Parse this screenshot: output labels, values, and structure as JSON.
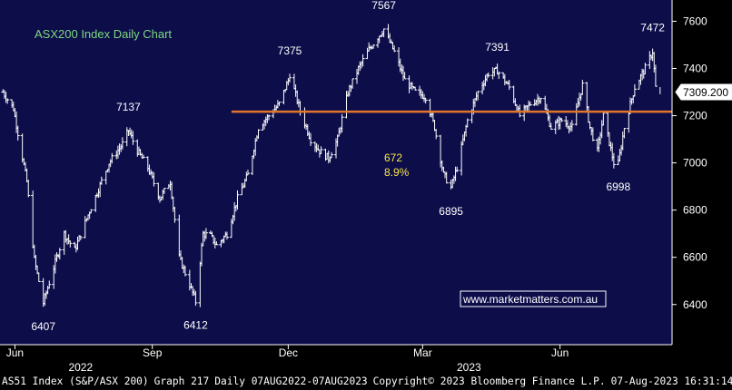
{
  "chart_data": {
    "type": "bar",
    "subtype": "ohlc",
    "title": "ASX200 Index Daily Chart",
    "watermark": "www.marketmatters.com.au",
    "ylim": [
      6230,
      7690
    ],
    "y_ticks": [
      6400,
      6600,
      6800,
      7000,
      7200,
      7400,
      7600
    ],
    "x_range": [
      "2022-05-22",
      "2023-08-15"
    ],
    "x_ticks": [
      {
        "label": "Jun",
        "date": "2022-06-01"
      },
      {
        "label": "Sep",
        "date": "2022-09-01"
      },
      {
        "label": "Dec",
        "date": "2022-12-01"
      },
      {
        "label": "Mar",
        "date": "2023-03-01"
      },
      {
        "label": "Jun",
        "date": "2023-06-01"
      }
    ],
    "year_labels": [
      {
        "label": "2022",
        "date": "2022-07-15"
      },
      {
        "label": "2023",
        "date": "2023-04-01"
      }
    ],
    "last_price": "7309.200",
    "support_level": 7217,
    "support_start": "2022-10-24",
    "annotation_text": [
      "672",
      "8.9%"
    ],
    "annotation_pos": {
      "date": "2023-01-03",
      "y": 7020
    },
    "key_points": [
      {
        "date": "2022-05-24",
        "value": 7300
      },
      {
        "date": "2022-05-31",
        "value": 7230
      },
      {
        "date": "2022-06-09",
        "value": 6920
      },
      {
        "date": "2022-06-14",
        "value": 6590
      },
      {
        "date": "2022-06-20",
        "value": 6407,
        "label": "6407",
        "labelPos": "below"
      },
      {
        "date": "2022-06-29",
        "value": 6600
      },
      {
        "date": "2022-07-04",
        "value": 6700
      },
      {
        "date": "2022-07-11",
        "value": 6630
      },
      {
        "date": "2022-07-20",
        "value": 6780
      },
      {
        "date": "2022-08-03",
        "value": 7000
      },
      {
        "date": "2022-08-12",
        "value": 7080
      },
      {
        "date": "2022-08-16",
        "value": 7137,
        "label": "7137",
        "labelPos": "above"
      },
      {
        "date": "2022-08-22",
        "value": 7050
      },
      {
        "date": "2022-08-29",
        "value": 6980
      },
      {
        "date": "2022-09-06",
        "value": 6850
      },
      {
        "date": "2022-09-13",
        "value": 6920
      },
      {
        "date": "2022-09-19",
        "value": 6600
      },
      {
        "date": "2022-09-28",
        "value": 6450
      },
      {
        "date": "2022-09-30",
        "value": 6412,
        "label": "6412",
        "labelPos": "below"
      },
      {
        "date": "2022-10-05",
        "value": 6700
      },
      {
        "date": "2022-10-10",
        "value": 6690
      },
      {
        "date": "2022-10-14",
        "value": 6650
      },
      {
        "date": "2022-10-21",
        "value": 6700
      },
      {
        "date": "2022-10-28",
        "value": 6850
      },
      {
        "date": "2022-11-04",
        "value": 6950
      },
      {
        "date": "2022-11-11",
        "value": 7150
      },
      {
        "date": "2022-11-18",
        "value": 7200
      },
      {
        "date": "2022-11-25",
        "value": 7250
      },
      {
        "date": "2022-12-01",
        "value": 7350
      },
      {
        "date": "2022-12-02",
        "value": 7375,
        "label": "7375",
        "labelPos": "above"
      },
      {
        "date": "2022-12-09",
        "value": 7220
      },
      {
        "date": "2022-12-16",
        "value": 7100
      },
      {
        "date": "2022-12-22",
        "value": 7050
      },
      {
        "date": "2022-12-28",
        "value": 7020
      },
      {
        "date": "2023-01-03",
        "value": 7100
      },
      {
        "date": "2023-01-10",
        "value": 7300
      },
      {
        "date": "2023-01-17",
        "value": 7400
      },
      {
        "date": "2023-01-24",
        "value": 7480
      },
      {
        "date": "2023-02-03",
        "value": 7567,
        "label": "7567",
        "labelPos": "above"
      },
      {
        "date": "2023-02-10",
        "value": 7470
      },
      {
        "date": "2023-02-17",
        "value": 7350
      },
      {
        "date": "2023-02-24",
        "value": 7300
      },
      {
        "date": "2023-03-03",
        "value": 7280
      },
      {
        "date": "2023-03-09",
        "value": 7150
      },
      {
        "date": "2023-03-15",
        "value": 6950
      },
      {
        "date": "2023-03-20",
        "value": 6895,
        "label": "6895",
        "labelPos": "below"
      },
      {
        "date": "2023-03-24",
        "value": 6980
      },
      {
        "date": "2023-03-31",
        "value": 7180
      },
      {
        "date": "2023-04-07",
        "value": 7300
      },
      {
        "date": "2023-04-14",
        "value": 7380
      },
      {
        "date": "2023-04-20",
        "value": 7391,
        "label": "7391",
        "labelPos": "above"
      },
      {
        "date": "2023-04-28",
        "value": 7320
      },
      {
        "date": "2023-05-05",
        "value": 7200
      },
      {
        "date": "2023-05-12",
        "value": 7250
      },
      {
        "date": "2023-05-19",
        "value": 7280
      },
      {
        "date": "2023-05-26",
        "value": 7150
      },
      {
        "date": "2023-06-02",
        "value": 7180
      },
      {
        "date": "2023-06-09",
        "value": 7150
      },
      {
        "date": "2023-06-16",
        "value": 7330
      },
      {
        "date": "2023-06-21",
        "value": 7150
      },
      {
        "date": "2023-06-26",
        "value": 7050
      },
      {
        "date": "2023-06-30",
        "value": 7200
      },
      {
        "date": "2023-07-07",
        "value": 7000
      },
      {
        "date": "2023-07-10",
        "value": 6998,
        "label": "6998",
        "labelPos": "below"
      },
      {
        "date": "2023-07-14",
        "value": 7150
      },
      {
        "date": "2023-07-21",
        "value": 7320
      },
      {
        "date": "2023-07-28",
        "value": 7400
      },
      {
        "date": "2023-08-02",
        "value": 7472,
        "label": "7472",
        "labelPos": "above"
      },
      {
        "date": "2023-08-04",
        "value": 7320
      },
      {
        "date": "2023-08-07",
        "value": 7309
      }
    ]
  },
  "footer": {
    "security": "AS51 Index (S&P/ASX 200)",
    "graph": "Graph 217",
    "period": "Daily 07AUG2022-07AUG2023",
    "copyright": "Copyright© 2023 Bloomberg Finance L.P.",
    "timestamp": "07-Aug-2023 16:31:14"
  },
  "colors": {
    "plot_bg": "#0d0d4a",
    "axis_bg": "#000000",
    "bars": "#ffffff",
    "title": "#7dd87d",
    "annotation": "#f5e642",
    "support_line": "#e0762b",
    "watermark_text": "#ffffff",
    "watermark_border": "#ffffff"
  }
}
